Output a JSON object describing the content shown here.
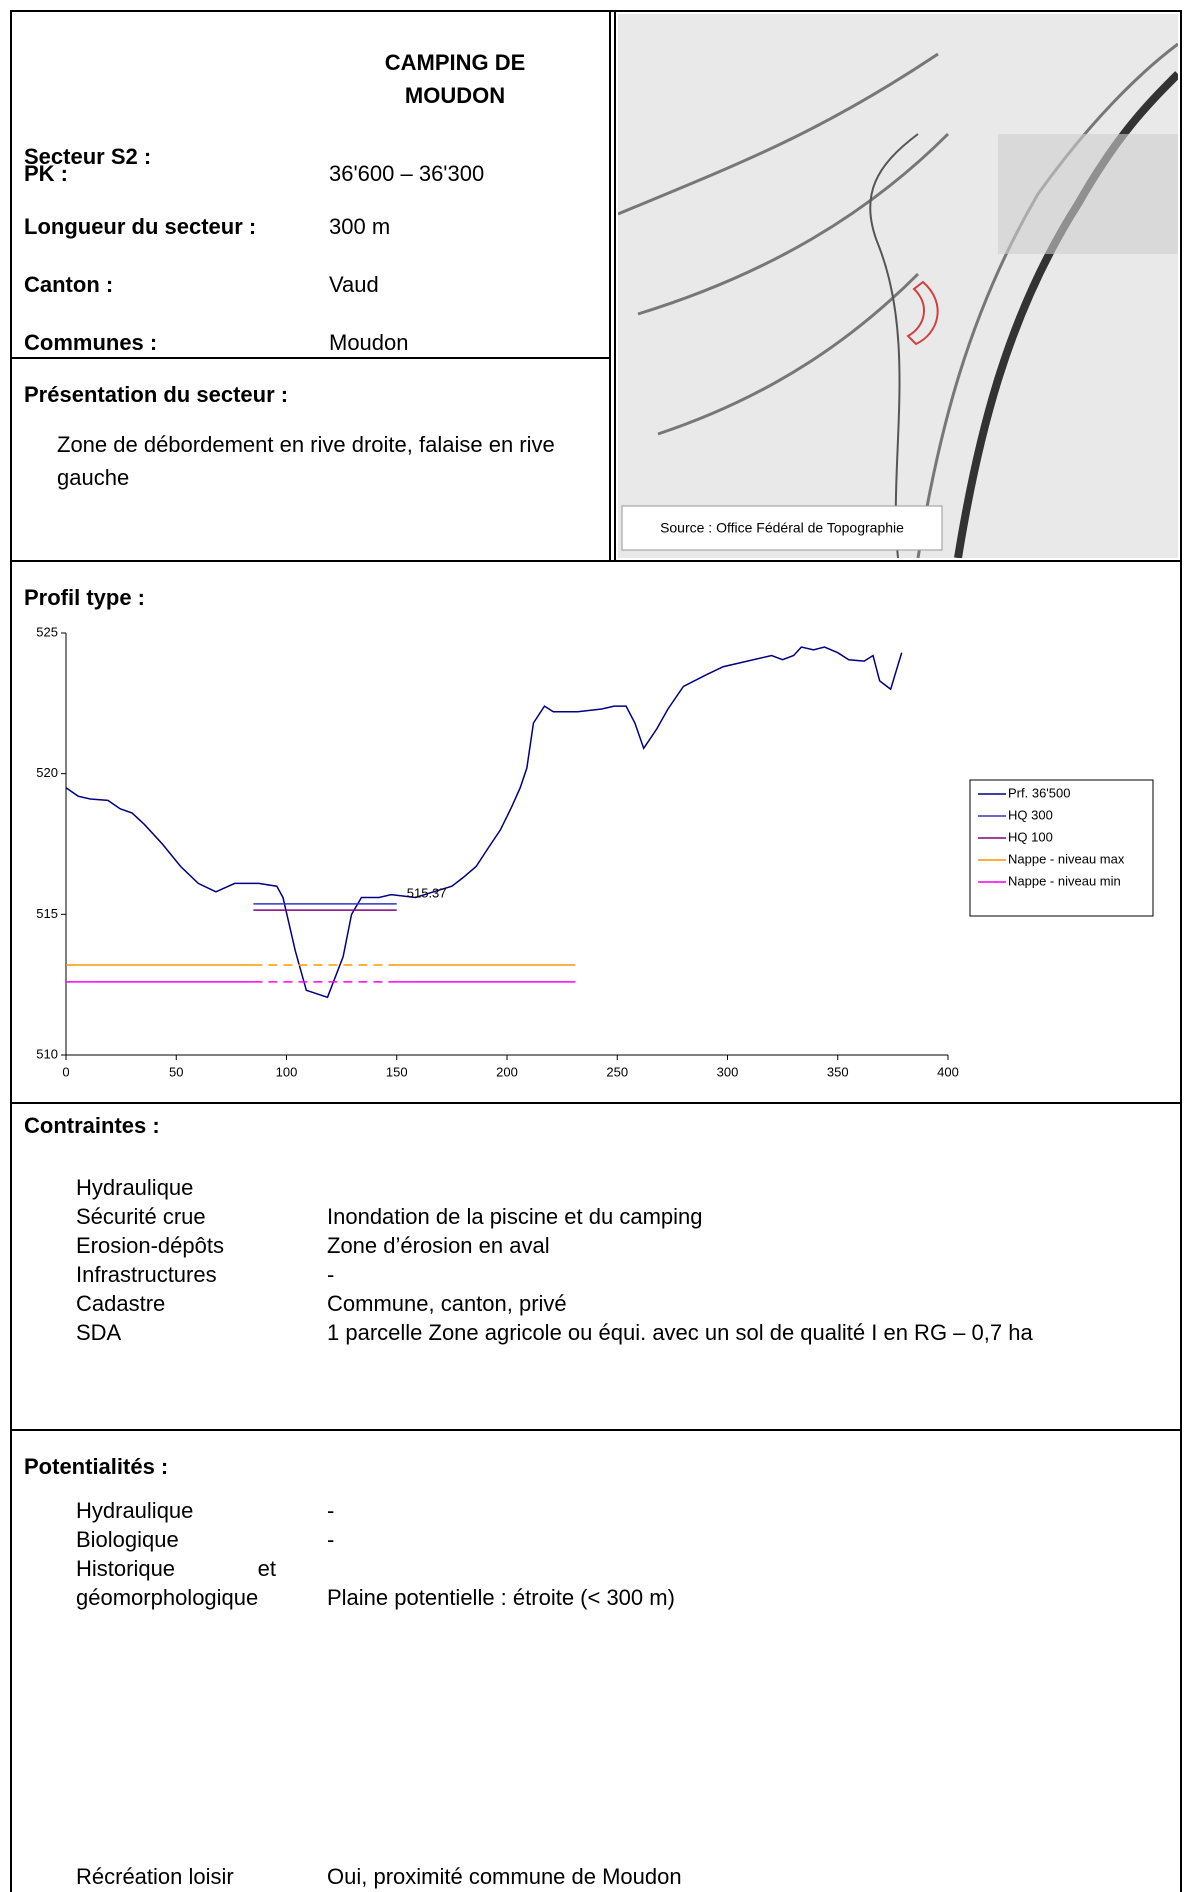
{
  "header": {
    "sector_label": "Secteur S2 :",
    "sector_name": "CAMPING DE MOUDON",
    "fields": [
      {
        "label": "PK :",
        "value": "36'600 – 36'300"
      },
      {
        "label": "Longueur du secteur :",
        "value": "300 m"
      },
      {
        "label": "Canton :",
        "value": "Vaud"
      },
      {
        "label": "Communes :",
        "value": "Moudon"
      }
    ]
  },
  "presentation": {
    "title": "Présentation du secteur :",
    "text": "Zone de débordement en rive droite, falaise en rive gauche"
  },
  "map": {
    "caption": "Source : Office Fédéral de Topographie"
  },
  "profile": {
    "title": "Profil type :"
  },
  "chart_data": {
    "type": "line",
    "xlim": [
      0,
      400
    ],
    "xticks": [
      0,
      50,
      100,
      150,
      200,
      250,
      300,
      350,
      400
    ],
    "ylim": [
      510,
      525
    ],
    "yticks": [
      510,
      515,
      520,
      525
    ],
    "grid": false,
    "legend": "right",
    "annotation": "515.37",
    "series": [
      {
        "name": "Prf. 36'500",
        "color": "#000080",
        "x": [
          0,
          5.5,
          11,
          19,
          24.6,
          30,
          35.5,
          43.7,
          52,
          60,
          68,
          76.5,
          87.4,
          95.6,
          98.4,
          104,
          109,
          118.6,
          125.7,
          129.5,
          134,
          142,
          147.5,
          158.5,
          166.7,
          175,
          180,
          186,
          191,
          197,
          202,
          206,
          209,
          212,
          217,
          221,
          232,
          243,
          248.6,
          254,
          258,
          262,
          268,
          273,
          280,
          290,
          298,
          309,
          320,
          325,
          330,
          333.5,
          339,
          344,
          350,
          355,
          362,
          366,
          369,
          374,
          379
        ],
        "values": [
          519.5,
          519.2,
          519.1,
          519.05,
          518.75,
          518.6,
          518.2,
          517.5,
          516.7,
          516.1,
          515.8,
          516.1,
          516.1,
          516.0,
          515.6,
          513.7,
          512.3,
          512.05,
          513.5,
          515.0,
          515.6,
          515.6,
          515.7,
          515.6,
          515.8,
          516.0,
          516.3,
          516.7,
          517.3,
          518.0,
          518.8,
          519.5,
          520.2,
          521.8,
          522.4,
          522.2,
          522.2,
          522.3,
          522.4,
          522.4,
          521.8,
          520.9,
          521.6,
          522.3,
          523.1,
          523.5,
          523.8,
          524.0,
          524.2,
          524.05,
          524.2,
          524.5,
          524.4,
          524.5,
          524.3,
          524.05,
          524.0,
          524.2,
          523.3,
          523.0,
          524.3
        ]
      },
      {
        "name": "HQ 300",
        "color": "#3333cc",
        "x": [
          85,
          150
        ],
        "values": [
          515.37,
          515.37
        ]
      },
      {
        "name": "HQ 100",
        "color": "#800080",
        "x": [
          85,
          150
        ],
        "values": [
          515.15,
          515.15
        ]
      },
      {
        "name": "Nappe - niveau max",
        "color": "#ff9900",
        "x": [
          0,
          85,
          150,
          231
        ],
        "values": [
          513.2,
          513.2,
          513.2,
          513.2
        ],
        "segment_styles": [
          "solid",
          "dashed",
          "solid"
        ]
      },
      {
        "name": "Nappe - niveau min",
        "color": "#ff00ff",
        "x": [
          0,
          85,
          150,
          231
        ],
        "values": [
          512.6,
          512.6,
          512.6,
          512.6
        ],
        "segment_styles": [
          "solid",
          "dashed",
          "solid"
        ]
      }
    ]
  },
  "constraints": {
    "title": "Contraintes :",
    "rows": [
      {
        "label": "Hydraulique"
      },
      {
        "label": "Sécurité crue",
        "value": "Inondation de la piscine et du camping"
      },
      {
        "label": "Erosion-dépôts",
        "value": "Zone d’érosion en aval"
      },
      {
        "label": "Infrastructures",
        "value": "-"
      },
      {
        "label": "Cadastre",
        "value": "Commune, canton, privé"
      },
      {
        "label": "SDA",
        "value": "1 parcelle Zone agricole ou équi. avec un sol de qualité I en RG – 0,7 ha"
      }
    ]
  },
  "potentials": {
    "title": "Potentialités :",
    "rows": [
      {
        "label": "Hydraulique",
        "value": "-"
      },
      {
        "label": "Biologique",
        "value": "-"
      },
      {
        "label": "Historique et géomorphologique",
        "value": "Plaine potentielle : étroite (< 300 m)"
      }
    ],
    "last": {
      "label": "Récréation loisir",
      "value": "Oui, proximité commune de Moudon"
    }
  }
}
